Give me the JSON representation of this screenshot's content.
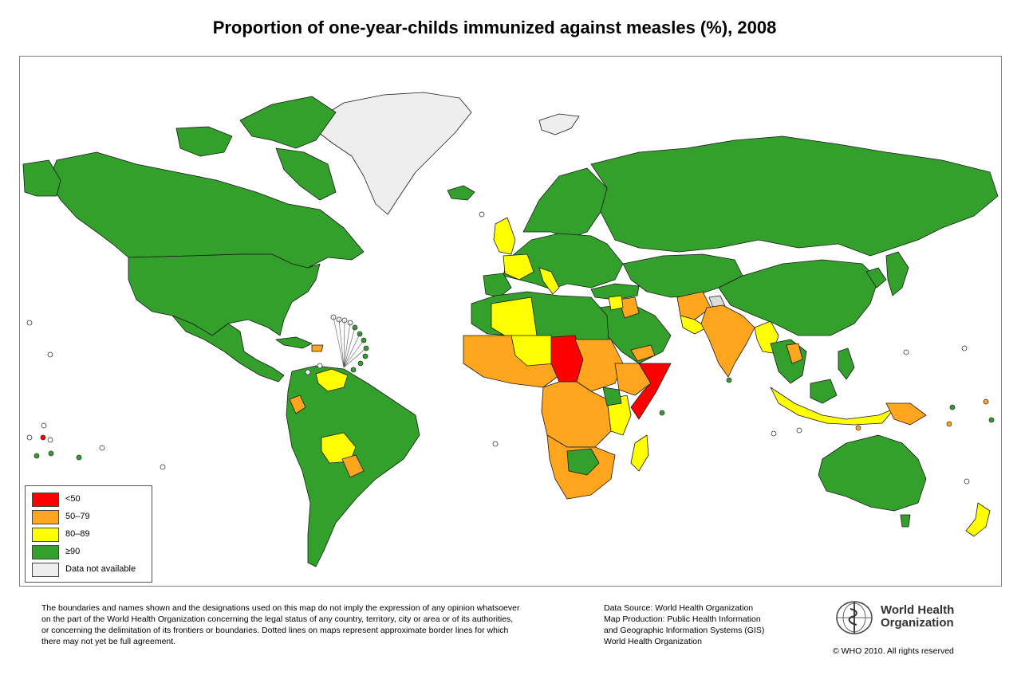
{
  "title": "Proportion of one-year-childs immunized against measles (%), 2008",
  "legend": [
    {
      "label": "<50",
      "color": "#ff0000"
    },
    {
      "label": "50–79",
      "color": "#ffa51e"
    },
    {
      "label": "80–89",
      "color": "#ffff00"
    },
    {
      "label": "≥90",
      "color": "#33a02c"
    },
    {
      "label": "Data not available",
      "color": "#eeeeee"
    }
  ],
  "map_colors": {
    "ocean": "#ffffff",
    "border": "#1a1a1a"
  },
  "disclaimer": [
    "The boundaries and names shown and the designations used on this map do not imply the expression of any opinion whatsoever",
    "on the part of the World Health Organization concerning the legal status of any country, territory, city or area or of its authorities,",
    "or concerning the delimitation of its frontiers or boundaries.  Dotted lines on maps represent approximate border lines for which",
    "there may not yet be full agreement."
  ],
  "source": [
    "Data Source: World Health Organization",
    "Map Production: Public Health Information",
    "and Geographic Information Systems (GIS)",
    "World Health Organization"
  ],
  "logo": {
    "line1": "World Health",
    "line2": "Organization",
    "icon": "who-emblem-icon"
  },
  "copyright": "© WHO 2010. All rights reserved"
}
